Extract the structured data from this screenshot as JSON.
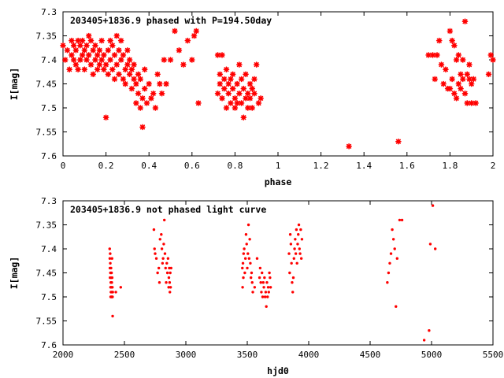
{
  "chart_data": [
    {
      "type": "scatter",
      "title": "203405+1836.9 phased with P=194.50day",
      "xlabel": "phase",
      "ylabel": "I[mag]",
      "xlim": [
        0,
        2
      ],
      "ylim": [
        7.6,
        7.3
      ],
      "y_inverted": true,
      "xticks": [
        "0",
        "0.2",
        "0.4",
        "0.6",
        "0.8",
        "1",
        "1.2",
        "1.4",
        "1.6",
        "1.8",
        "2"
      ],
      "yticks": [
        "7.3",
        "7.35",
        "7.4",
        "7.45",
        "7.5",
        "7.55",
        "7.6"
      ],
      "grid": false,
      "marker": "star",
      "color": "#ff0000",
      "x": [
        0.0,
        0.01,
        0.02,
        0.03,
        0.04,
        0.04,
        0.05,
        0.05,
        0.06,
        0.06,
        0.07,
        0.07,
        0.08,
        0.08,
        0.09,
        0.09,
        0.1,
        0.1,
        0.11,
        0.11,
        0.12,
        0.12,
        0.13,
        0.13,
        0.14,
        0.14,
        0.15,
        0.15,
        0.16,
        0.16,
        0.17,
        0.17,
        0.18,
        0.18,
        0.19,
        0.19,
        0.2,
        0.2,
        0.21,
        0.21,
        0.22,
        0.22,
        0.23,
        0.23,
        0.24,
        0.24,
        0.25,
        0.25,
        0.26,
        0.26,
        0.27,
        0.27,
        0.28,
        0.28,
        0.29,
        0.29,
        0.3,
        0.3,
        0.31,
        0.31,
        0.32,
        0.32,
        0.33,
        0.33,
        0.34,
        0.34,
        0.35,
        0.35,
        0.36,
        0.36,
        0.37,
        0.37,
        0.38,
        0.38,
        0.39,
        0.4,
        0.41,
        0.42,
        0.43,
        0.44,
        0.45,
        0.46,
        0.47,
        0.48,
        0.5,
        0.52,
        0.54,
        0.56,
        0.58,
        0.6,
        0.61,
        0.62,
        0.63,
        0.72,
        0.72,
        0.73,
        0.73,
        0.74,
        0.74,
        0.75,
        0.75,
        0.76,
        0.76,
        0.77,
        0.77,
        0.78,
        0.78,
        0.79,
        0.79,
        0.8,
        0.8,
        0.81,
        0.81,
        0.82,
        0.82,
        0.83,
        0.83,
        0.84,
        0.84,
        0.85,
        0.85,
        0.86,
        0.86,
        0.87,
        0.87,
        0.88,
        0.88,
        0.89,
        0.89,
        0.9,
        0.91,
        0.92,
        1.33,
        1.56,
        1.7,
        1.72,
        1.73,
        1.74,
        1.75,
        1.76,
        1.77,
        1.78,
        1.79,
        1.8,
        1.8,
        1.81,
        1.81,
        1.82,
        1.82,
        1.83,
        1.83,
        1.84,
        1.84,
        1.85,
        1.85,
        1.86,
        1.86,
        1.87,
        1.87,
        1.88,
        1.88,
        1.89,
        1.89,
        1.9,
        1.9,
        1.91,
        1.92,
        1.98,
        1.99,
        2.0
      ],
      "y": [
        7.37,
        7.4,
        7.38,
        7.42,
        7.39,
        7.36,
        7.4,
        7.37,
        7.41,
        7.38,
        7.42,
        7.36,
        7.4,
        7.37,
        7.39,
        7.36,
        7.42,
        7.38,
        7.4,
        7.37,
        7.35,
        7.39,
        7.36,
        7.41,
        7.38,
        7.43,
        7.37,
        7.4,
        7.42,
        7.39,
        7.41,
        7.38,
        7.4,
        7.36,
        7.42,
        7.39,
        7.41,
        7.52,
        7.38,
        7.43,
        7.36,
        7.4,
        7.37,
        7.42,
        7.39,
        7.44,
        7.35,
        7.41,
        7.38,
        7.43,
        7.36,
        7.4,
        7.44,
        7.39,
        7.42,
        7.45,
        7.41,
        7.38,
        7.43,
        7.4,
        7.46,
        7.42,
        7.44,
        7.41,
        7.49,
        7.45,
        7.43,
        7.47,
        7.5,
        7.44,
        7.48,
        7.54,
        7.46,
        7.42,
        7.49,
        7.45,
        7.48,
        7.47,
        7.5,
        7.43,
        7.45,
        7.47,
        7.4,
        7.45,
        7.4,
        7.34,
        7.38,
        7.41,
        7.36,
        7.4,
        7.35,
        7.34,
        7.49,
        7.39,
        7.47,
        7.45,
        7.43,
        7.39,
        7.48,
        7.44,
        7.46,
        7.42,
        7.5,
        7.45,
        7.47,
        7.44,
        7.49,
        7.46,
        7.43,
        7.48,
        7.5,
        7.45,
        7.49,
        7.41,
        7.47,
        7.44,
        7.49,
        7.46,
        7.52,
        7.48,
        7.43,
        7.47,
        7.5,
        7.45,
        7.48,
        7.46,
        7.5,
        7.44,
        7.47,
        7.41,
        7.49,
        7.48,
        7.58,
        7.57,
        7.39,
        7.39,
        7.44,
        7.39,
        7.36,
        7.41,
        7.45,
        7.42,
        7.46,
        7.34,
        7.46,
        7.36,
        7.44,
        7.37,
        7.47,
        7.4,
        7.48,
        7.39,
        7.45,
        7.43,
        7.46,
        7.4,
        7.44,
        7.32,
        7.47,
        7.43,
        7.49,
        7.44,
        7.41,
        7.45,
        7.49,
        7.44,
        7.49,
        7.43,
        7.39,
        7.4
      ]
    },
    {
      "type": "scatter",
      "title": "203405+1836.9 not phased light curve",
      "xlabel": "hjd0",
      "ylabel": "I[mag]",
      "xlim": [
        2000,
        5500
      ],
      "ylim": [
        7.6,
        7.3
      ],
      "y_inverted": true,
      "xticks": [
        "2000",
        "2500",
        "3000",
        "3500",
        "4000",
        "4500",
        "5000",
        "5500"
      ],
      "yticks": [
        "7.3",
        "7.35",
        "7.4",
        "7.45",
        "7.5",
        "7.55",
        "7.6"
      ],
      "grid": false,
      "marker": "dot",
      "color": "#ff0000",
      "x": [
        2380,
        2381,
        2382,
        2383,
        2384,
        2385,
        2386,
        2387,
        2388,
        2389,
        2390,
        2391,
        2392,
        2393,
        2394,
        2395,
        2396,
        2397,
        2398,
        2399,
        2400,
        2401,
        2402,
        2403,
        2404,
        2405,
        2430,
        2470,
        2740,
        2745,
        2750,
        2760,
        2770,
        2780,
        2785,
        2790,
        2800,
        2805,
        2810,
        2815,
        2820,
        2825,
        2830,
        2835,
        2840,
        2845,
        2850,
        2855,
        2860,
        2862,
        2865,
        2868,
        2870,
        2873,
        2876,
        2880,
        3460,
        3462,
        3465,
        3468,
        3470,
        3475,
        3480,
        3485,
        3490,
        3495,
        3500,
        3505,
        3510,
        3515,
        3520,
        3525,
        3530,
        3535,
        3540,
        3545,
        3560,
        3580,
        3600,
        3605,
        3610,
        3615,
        3620,
        3625,
        3630,
        3635,
        3640,
        3645,
        3650,
        3655,
        3660,
        3665,
        3670,
        3675,
        3680,
        3685,
        3690,
        3840,
        3845,
        3850,
        3855,
        3860,
        3865,
        3870,
        3875,
        3880,
        3885,
        3890,
        3895,
        3900,
        3905,
        3910,
        3915,
        3920,
        3925,
        3930,
        3935,
        3940,
        3945,
        4640,
        4650,
        4660,
        4670,
        4680,
        4690,
        4700,
        4710,
        4720,
        4740,
        4760,
        4940,
        4980,
        4990,
        5010,
        5030
      ],
      "y": [
        7.4,
        7.42,
        7.44,
        7.46,
        7.41,
        7.43,
        7.45,
        7.48,
        7.5,
        7.47,
        7.49,
        7.44,
        7.46,
        7.48,
        7.5,
        7.45,
        7.49,
        7.47,
        7.5,
        7.42,
        7.46,
        7.49,
        7.48,
        7.5,
        7.54,
        7.49,
        7.49,
        7.48,
        7.36,
        7.4,
        7.41,
        7.42,
        7.45,
        7.44,
        7.47,
        7.38,
        7.37,
        7.4,
        7.43,
        7.42,
        7.39,
        7.34,
        7.41,
        7.44,
        7.47,
        7.43,
        7.45,
        7.42,
        7.48,
        7.46,
        7.44,
        7.47,
        7.49,
        7.45,
        7.48,
        7.44,
        7.44,
        7.48,
        7.43,
        7.46,
        7.41,
        7.4,
        7.45,
        7.42,
        7.37,
        7.39,
        7.44,
        7.41,
        7.35,
        7.42,
        7.38,
        7.43,
        7.46,
        7.45,
        7.47,
        7.49,
        7.48,
        7.42,
        7.46,
        7.44,
        7.47,
        7.49,
        7.45,
        7.5,
        7.47,
        7.48,
        7.46,
        7.5,
        7.49,
        7.52,
        7.47,
        7.5,
        7.48,
        7.49,
        7.45,
        7.46,
        7.48,
        7.41,
        7.45,
        7.37,
        7.39,
        7.43,
        7.47,
        7.49,
        7.46,
        7.42,
        7.4,
        7.38,
        7.41,
        7.36,
        7.43,
        7.39,
        7.37,
        7.35,
        7.4,
        7.41,
        7.36,
        7.42,
        7.38,
        7.47,
        7.45,
        7.43,
        7.41,
        7.36,
        7.38,
        7.4,
        7.52,
        7.42,
        7.34,
        7.34,
        7.59,
        7.57,
        7.39,
        7.31,
        7.4
      ]
    }
  ]
}
